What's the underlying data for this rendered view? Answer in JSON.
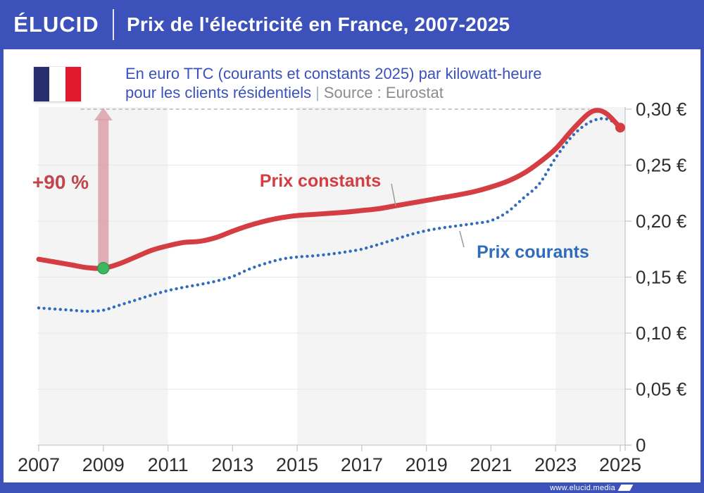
{
  "header": {
    "logo": "ÉLUCID",
    "title": "Prix de l'électricité en France, 2007-2025"
  },
  "subtitle": {
    "line1": "En euro TTC (courants et constants 2025) par kilowatt-heure",
    "line2_main": "pour les clients résidentiels",
    "separator": "|",
    "source": "Source : Eurostat"
  },
  "footer": {
    "url": "www.elucid.media"
  },
  "colors": {
    "header_blue": "#3c52ba",
    "constants_red": "#d43d42",
    "courants_blue": "#2f6cbc",
    "green_dot": "#3eb760",
    "arrow_pink": "#d9a0aa",
    "pct_red": "#c2444c",
    "band_gray": "#f4f4f4",
    "gridline": "#e8e8e8",
    "axis": "#c9c9c9",
    "dashed_line": "#b5b5b5",
    "tick_label": "#2e2e2e",
    "connector_gray": "#9a9a9a"
  },
  "chart_data": {
    "type": "line",
    "title": "Prix de l'électricité en France, 2007-2025",
    "subtitle": "En euro TTC (courants et constants 2025) par kilowatt-heure pour les clients résidentiels",
    "source": "Eurostat",
    "xlabel": "",
    "ylabel": "euro TTC par kilowatt-heure",
    "x_range": [
      2007,
      2025.16
    ],
    "ylim": [
      0,
      0.302
    ],
    "grid": true,
    "x_ticks": [
      2007,
      2009,
      2011,
      2013,
      2015,
      2017,
      2019,
      2021,
      2023,
      2025
    ],
    "y_ticks": [
      {
        "value": 0.3,
        "label": "0,30 €"
      },
      {
        "value": 0.25,
        "label": "0,25 €"
      },
      {
        "value": 0.2,
        "label": "0,20 €"
      },
      {
        "value": 0.15,
        "label": "0,15 €"
      },
      {
        "value": 0.1,
        "label": "0,10 €"
      },
      {
        "value": 0.05,
        "label": "0,05 €"
      },
      {
        "value": 0,
        "label": "0"
      }
    ],
    "background_bands_years": [
      [
        2007,
        2011
      ],
      [
        2015,
        2019
      ],
      [
        2023,
        2025.16
      ]
    ],
    "series": [
      {
        "name": "Prix constants",
        "style": "solid",
        "points": [
          [
            2007,
            0.166
          ],
          [
            2007.5,
            0.1635
          ],
          [
            2008,
            0.161
          ],
          [
            2008.5,
            0.1585
          ],
          [
            2009,
            0.158
          ],
          [
            2009.5,
            0.162
          ],
          [
            2010,
            0.168
          ],
          [
            2010.5,
            0.174
          ],
          [
            2011,
            0.178
          ],
          [
            2011.5,
            0.181
          ],
          [
            2012,
            0.182
          ],
          [
            2012.5,
            0.1855
          ],
          [
            2013,
            0.191
          ],
          [
            2013.5,
            0.196
          ],
          [
            2014,
            0.2
          ],
          [
            2014.5,
            0.203
          ],
          [
            2015,
            0.205
          ],
          [
            2015.5,
            0.206
          ],
          [
            2016,
            0.207
          ],
          [
            2016.5,
            0.208
          ],
          [
            2017,
            0.2095
          ],
          [
            2017.5,
            0.211
          ],
          [
            2018,
            0.2135
          ],
          [
            2018.5,
            0.216
          ],
          [
            2019,
            0.2185
          ],
          [
            2019.5,
            0.221
          ],
          [
            2020,
            0.2235
          ],
          [
            2020.5,
            0.2265
          ],
          [
            2021,
            0.2305
          ],
          [
            2021.5,
            0.2355
          ],
          [
            2022,
            0.2425
          ],
          [
            2022.5,
            0.2525
          ],
          [
            2023,
            0.2645
          ],
          [
            2023.5,
            0.281
          ],
          [
            2024,
            0.2955
          ],
          [
            2024.3,
            0.299
          ],
          [
            2024.6,
            0.2955
          ],
          [
            2025,
            0.2835
          ]
        ]
      },
      {
        "name": "Prix courants",
        "style": "dotted",
        "points": [
          [
            2007,
            0.1225
          ],
          [
            2007.5,
            0.1215
          ],
          [
            2008,
            0.1205
          ],
          [
            2008.5,
            0.1195
          ],
          [
            2009,
            0.1205
          ],
          [
            2009.5,
            0.125
          ],
          [
            2010,
            0.1295
          ],
          [
            2010.5,
            0.134
          ],
          [
            2011,
            0.138
          ],
          [
            2011.5,
            0.141
          ],
          [
            2012,
            0.1435
          ],
          [
            2012.5,
            0.1465
          ],
          [
            2013,
            0.1505
          ],
          [
            2013.5,
            0.157
          ],
          [
            2014,
            0.162
          ],
          [
            2014.5,
            0.166
          ],
          [
            2015,
            0.168
          ],
          [
            2015.5,
            0.169
          ],
          [
            2016,
            0.1705
          ],
          [
            2016.5,
            0.1725
          ],
          [
            2017,
            0.175
          ],
          [
            2017.5,
            0.179
          ],
          [
            2018,
            0.1835
          ],
          [
            2018.5,
            0.188
          ],
          [
            2019,
            0.1915
          ],
          [
            2019.5,
            0.194
          ],
          [
            2020,
            0.196
          ],
          [
            2020.5,
            0.198
          ],
          [
            2021,
            0.2005
          ],
          [
            2021.5,
            0.208
          ],
          [
            2022,
            0.2205
          ],
          [
            2022.5,
            0.2335
          ],
          [
            2023,
            0.2565
          ],
          [
            2023.5,
            0.2755
          ],
          [
            2024,
            0.2875
          ],
          [
            2024.4,
            0.2915
          ],
          [
            2024.7,
            0.29
          ],
          [
            2025,
            0.2845
          ]
        ]
      }
    ],
    "annotations": {
      "pct_label": "+90 %",
      "dashed_level": 0.3,
      "dashed_x_years": [
        2008.3,
        2024.05
      ],
      "arrow_year": 2009,
      "min_point": {
        "year": 2009,
        "value": 0.158
      },
      "end_point": {
        "year": 2025,
        "value": 0.2835
      }
    },
    "legend_position": "inline-labels"
  }
}
